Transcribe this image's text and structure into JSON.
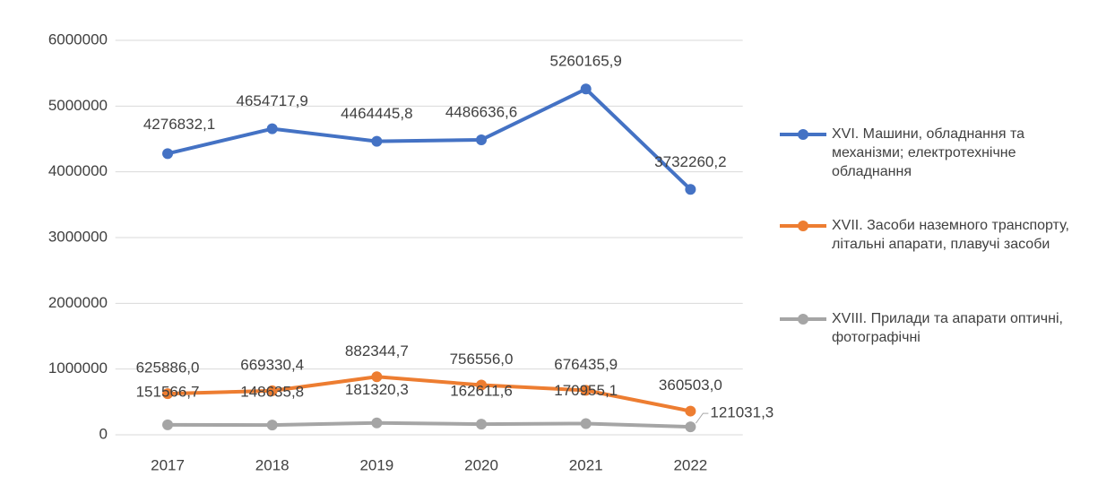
{
  "chart_data": {
    "type": "line",
    "categories": [
      "2017",
      "2018",
      "2019",
      "2020",
      "2021",
      "2022"
    ],
    "series": [
      {
        "name": "XVI. Машини, обладнання та механізми; електротехнічне обладнання",
        "color": "#4472c4",
        "values": [
          4276832.1,
          4654717.9,
          4464445.8,
          4486636.6,
          5260165.9,
          3732260.2
        ],
        "value_labels": [
          "4276832,1",
          "4654717,9",
          "4464445,8",
          "4486636,6",
          "5260165,9",
          "3732260,2"
        ]
      },
      {
        "name": "XVII. Засоби наземного транспорту, літальні апарати, плавучі засоби",
        "color": "#ed7d31",
        "values": [
          625886.0,
          669330.4,
          882344.7,
          756556.0,
          676435.9,
          360503.0
        ],
        "value_labels": [
          "625886,0",
          "669330,4",
          "882344,7",
          "756556,0",
          "676435,9",
          "360503,0"
        ]
      },
      {
        "name": "XVIII. Прилади та апарати оптичні, фотографічні",
        "color": "#a5a5a5",
        "values": [
          151566.7,
          148635.8,
          181320.3,
          162611.6,
          170955.1,
          121031.3
        ],
        "value_labels": [
          "151566,7",
          "148635,8",
          "181320,3",
          "162611,6",
          "170955,1",
          "121031,3"
        ]
      }
    ],
    "ylim": [
      0,
      6000000
    ],
    "yticks": [
      0,
      1000000,
      2000000,
      3000000,
      4000000,
      5000000,
      6000000
    ],
    "grid": true
  }
}
